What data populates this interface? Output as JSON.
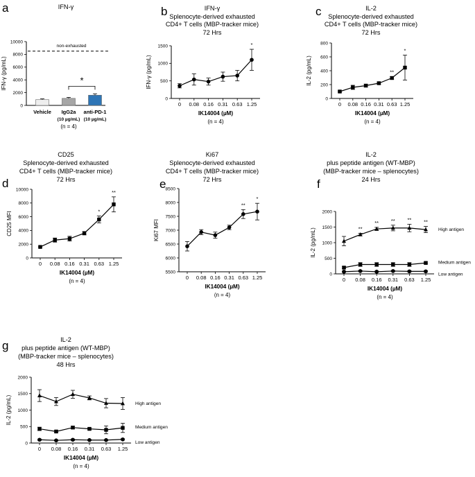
{
  "chart_data": [
    {
      "panel": "a",
      "type": "bar",
      "title": [
        "IFN-γ"
      ],
      "categories": [
        "Vehicle",
        "IgG2a",
        "anti-PD-1"
      ],
      "category_sublabels": [
        "",
        "(10 µg/mL)",
        "(10 µg/mL)"
      ],
      "values": [
        900,
        1100,
        1600
      ],
      "errors": [
        120,
        150,
        220
      ],
      "bar_colors": [
        "#eeeeee",
        "#a6a6a6",
        "#2e75b6"
      ],
      "reference_line": {
        "value": 8500,
        "label": "non-exhausted"
      },
      "significance": [
        {
          "between": [
            "IgG2a",
            "anti-PD-1"
          ],
          "label": "*"
        }
      ],
      "ylabel": "IFN-γ  (pg/mL)",
      "ylim": [
        0,
        10000
      ],
      "yticks": [
        0,
        2000,
        4000,
        6000,
        8000,
        10000
      ],
      "n_label": "(n = 4)"
    },
    {
      "panel": "b",
      "type": "line",
      "title": [
        "IFN-γ",
        "Splenocyte-derived exhausted",
        "CD4+ T cells (MBP-tracker mice)",
        "72 Hrs"
      ],
      "categories": [
        "0",
        "0.08",
        "0.16",
        "0.31",
        "0.63",
        "1.25"
      ],
      "series": [
        {
          "name": "",
          "marker": "circle",
          "values": [
            360,
            540,
            480,
            620,
            650,
            1100
          ],
          "errors": [
            60,
            160,
            100,
            130,
            150,
            300
          ],
          "sig": [
            "",
            "",
            "",
            "",
            "",
            "*"
          ]
        }
      ],
      "ylabel": "IFN-γ  (pg/mL)",
      "ylim": [
        0,
        1500
      ],
      "yticks": [
        0,
        500,
        1000,
        1500
      ],
      "xlabel": "IK14004 (µM)",
      "n_label": "(n = 4)"
    },
    {
      "panel": "c",
      "type": "line",
      "title": [
        "IL-2",
        "Splenocyte-derived exhausted",
        "CD4+ T cells (MBP-tracker mice)",
        "72 Hrs"
      ],
      "categories": [
        "0",
        "0.08",
        "0.16",
        "0.31",
        "0.63",
        "1.25"
      ],
      "series": [
        {
          "name": "",
          "marker": "square",
          "values": [
            100,
            160,
            185,
            220,
            295,
            445
          ],
          "errors": [
            10,
            30,
            20,
            15,
            20,
            180
          ],
          "sig": [
            "",
            "",
            "",
            "",
            "**",
            "*"
          ]
        }
      ],
      "ylabel": "IL-2  (pg/mL)",
      "ylim": [
        0,
        800
      ],
      "yticks": [
        0,
        200,
        400,
        600,
        800
      ],
      "xlabel": "IK14004 (µM)",
      "n_label": "(n = 4)"
    },
    {
      "panel": "d",
      "type": "line",
      "title": [
        "CD25",
        "Splenocyte-derived exhausted",
        "CD4+ T cells (MBP-tracker mice)",
        "72 Hrs"
      ],
      "categories": [
        "0",
        "0.08",
        "0.16",
        "0.31",
        "0.63",
        "1.25"
      ],
      "series": [
        {
          "name": "",
          "marker": "square",
          "values": [
            1600,
            2600,
            2800,
            3600,
            5600,
            7800
          ],
          "errors": [
            100,
            300,
            350,
            250,
            500,
            1100
          ],
          "sig": [
            "",
            "",
            "",
            "",
            "*",
            "**"
          ]
        }
      ],
      "ylabel": "CD25 MFI",
      "ylim": [
        0,
        10000
      ],
      "yticks": [
        0,
        2000,
        4000,
        6000,
        8000,
        10000
      ],
      "xlabel": "IK14004 (µM)",
      "n_label": "(n = 4)"
    },
    {
      "panel": "e",
      "type": "line",
      "title": [
        "Ki67",
        "Splenocyte-derived exhausted",
        "CD4+ T cells (MBP-tracker mice)",
        "72 Hrs"
      ],
      "categories": [
        "0",
        "0.08",
        "0.16",
        "0.31",
        "0.63",
        "1.25"
      ],
      "series": [
        {
          "name": "",
          "marker": "circle",
          "values": [
            6420,
            6930,
            6820,
            7100,
            7580,
            7670
          ],
          "errors": [
            170,
            90,
            110,
            80,
            160,
            300
          ],
          "sig": [
            "",
            "",
            "",
            "",
            "**",
            "*"
          ]
        }
      ],
      "ylabel": "Ki67 MFI",
      "ylim": [
        5500,
        8500
      ],
      "yticks": [
        5500,
        6000,
        6500,
        7000,
        7500,
        8000,
        8500
      ],
      "xlabel": "IK14004 (µM)",
      "n_label": "(n = 4)"
    },
    {
      "panel": "f",
      "type": "line",
      "title": [
        "IL-2",
        "plus peptide antigen (WT-MBP)",
        "(MBP-tracker mice – splenocytes)",
        "24 Hrs"
      ],
      "categories": [
        "0",
        "0.08",
        "0.16",
        "0.31",
        "0.63",
        "1.25"
      ],
      "series": [
        {
          "name": "High antigen",
          "marker": "triangle",
          "values": [
            1050,
            1260,
            1440,
            1470,
            1470,
            1420
          ],
          "errors": [
            150,
            40,
            50,
            90,
            120,
            100
          ],
          "sig": [
            "",
            "**",
            "**",
            "**",
            "**",
            "**"
          ]
        },
        {
          "name": "Medium antigen",
          "marker": "square",
          "values": [
            200,
            300,
            300,
            300,
            300,
            350
          ],
          "errors": [
            40,
            60,
            60,
            60,
            60,
            30
          ],
          "sig": [
            "",
            "",
            "",
            "",
            "",
            ""
          ]
        },
        {
          "name": "Low antigen",
          "marker": "circle",
          "values": [
            70,
            90,
            70,
            90,
            80,
            80
          ],
          "errors": [
            20,
            20,
            20,
            20,
            20,
            20
          ],
          "sig": [
            "",
            "",
            "",
            "",
            "",
            ""
          ]
        }
      ],
      "ylabel": "IL-2  (pg/mL)",
      "ylim": [
        0,
        2000
      ],
      "yticks": [
        0,
        500,
        1000,
        1500,
        2000
      ],
      "xlabel": "IK14004 (µM)",
      "n_label": "(n = 4)"
    },
    {
      "panel": "g",
      "type": "line",
      "title": [
        "IL-2",
        "plus peptide antigen (WT-MBP)",
        "(MBP-tracker mice – splenocytes)",
        "48 Hrs"
      ],
      "categories": [
        "0",
        "0.08",
        "0.16",
        "0.31",
        "0.63",
        "1.25"
      ],
      "series": [
        {
          "name": "High antigen",
          "marker": "triangle",
          "values": [
            1440,
            1260,
            1480,
            1370,
            1210,
            1200
          ],
          "errors": [
            180,
            120,
            120,
            60,
            140,
            180
          ],
          "sig": [
            "",
            "",
            "",
            "",
            "",
            ""
          ]
        },
        {
          "name": "Medium antigen",
          "marker": "square",
          "values": [
            430,
            350,
            470,
            430,
            400,
            460
          ],
          "errors": [
            50,
            30,
            40,
            30,
            120,
            140
          ],
          "sig": [
            "",
            "",
            "",
            "",
            "",
            ""
          ]
        },
        {
          "name": "Low antigen",
          "marker": "circle",
          "values": [
            100,
            80,
            100,
            90,
            90,
            110
          ],
          "errors": [
            20,
            15,
            20,
            15,
            15,
            20
          ],
          "sig": [
            "",
            "",
            "",
            "",
            "",
            ""
          ]
        }
      ],
      "ylabel": "IL-2  (pg/mL)",
      "ylim": [
        0,
        2000
      ],
      "yticks": [
        0,
        500,
        1000,
        1500,
        2000
      ],
      "xlabel": "IK14004 (µM)",
      "n_label": "(n = 4)"
    }
  ]
}
